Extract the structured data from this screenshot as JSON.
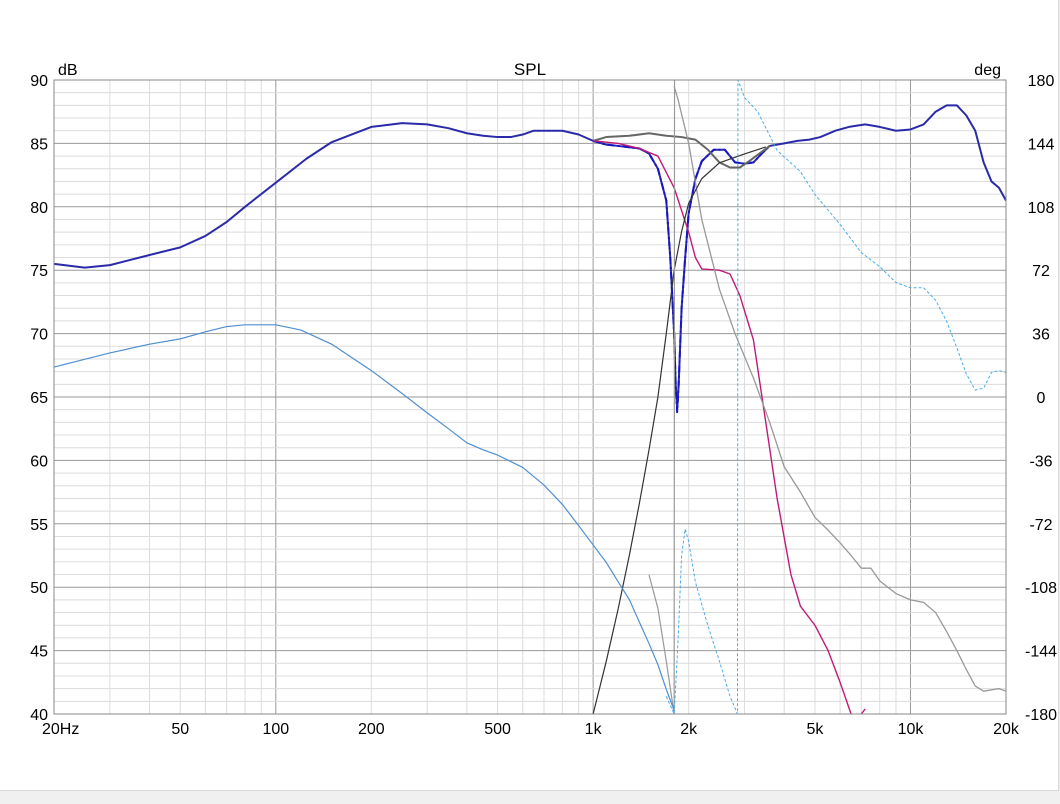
{
  "chart_data": {
    "type": "line",
    "title": "SPL",
    "ylabel_left": "dB",
    "ylabel_right": "deg",
    "x_scale": "log",
    "xlim": [
      20,
      20000
    ],
    "ylim_left": [
      40,
      90
    ],
    "ylim_right": [
      -180,
      180
    ],
    "grid": true,
    "x_ticks": [
      {
        "value": 20,
        "label": "20Hz"
      },
      {
        "value": 50,
        "label": "50"
      },
      {
        "value": 100,
        "label": "100"
      },
      {
        "value": 200,
        "label": "200"
      },
      {
        "value": 500,
        "label": "500"
      },
      {
        "value": 1000,
        "label": "1k"
      },
      {
        "value": 2000,
        "label": "2k"
      },
      {
        "value": 5000,
        "label": "5k"
      },
      {
        "value": 10000,
        "label": "10k"
      },
      {
        "value": 20000,
        "label": "20k"
      }
    ],
    "y_ticks_left": [
      90,
      85,
      80,
      75,
      70,
      65,
      60,
      55,
      50,
      45,
      40
    ],
    "y_ticks_right": [
      180,
      144,
      108,
      72,
      36,
      0,
      -36,
      -72,
      -108,
      -144,
      -180
    ],
    "series": [
      {
        "color": "#2b2aa8",
        "axis": "left",
        "width": 2,
        "points": [
          [
            20,
            75.5
          ],
          [
            25,
            75.2
          ],
          [
            30,
            75.4
          ],
          [
            40,
            76.2
          ],
          [
            50,
            76.8
          ],
          [
            60,
            77.7
          ],
          [
            70,
            78.8
          ],
          [
            80,
            80.0
          ],
          [
            100,
            81.9
          ],
          [
            125,
            83.8
          ],
          [
            150,
            85.1
          ],
          [
            200,
            86.3
          ],
          [
            250,
            86.6
          ],
          [
            300,
            86.5
          ],
          [
            350,
            86.2
          ],
          [
            400,
            85.8
          ],
          [
            450,
            85.6
          ],
          [
            500,
            85.5
          ],
          [
            550,
            85.5
          ],
          [
            600,
            85.7
          ],
          [
            650,
            86.0
          ],
          [
            700,
            86.0
          ],
          [
            750,
            86.0
          ],
          [
            800,
            86.0
          ],
          [
            900,
            85.7
          ],
          [
            1000,
            85.2
          ],
          [
            1100,
            84.9
          ],
          [
            1200,
            84.8
          ],
          [
            1300,
            84.7
          ],
          [
            1400,
            84.6
          ],
          [
            1500,
            84.2
          ],
          [
            1600,
            83.0
          ],
          [
            1700,
            80.5
          ],
          [
            1750,
            76.0
          ],
          [
            1800,
            70.0
          ],
          [
            1820,
            66.0
          ],
          [
            1840,
            64.0
          ],
          [
            1860,
            66.0
          ],
          [
            1900,
            72.0
          ],
          [
            1950,
            76.0
          ],
          [
            2000,
            79.5
          ],
          [
            2100,
            82.2
          ],
          [
            2200,
            83.6
          ],
          [
            2400,
            84.5
          ],
          [
            2600,
            84.5
          ],
          [
            2800,
            83.5
          ],
          [
            3000,
            83.4
          ],
          [
            3200,
            83.5
          ],
          [
            3400,
            84.2
          ],
          [
            3600,
            84.8
          ],
          [
            4000,
            85.0
          ],
          [
            4400,
            85.2
          ],
          [
            4800,
            85.3
          ],
          [
            5200,
            85.5
          ],
          [
            5800,
            86.0
          ],
          [
            6400,
            86.3
          ],
          [
            7200,
            86.5
          ],
          [
            8000,
            86.3
          ],
          [
            9000,
            86.0
          ],
          [
            10000,
            86.1
          ],
          [
            11000,
            86.5
          ],
          [
            12000,
            87.5
          ],
          [
            13000,
            88.0
          ],
          [
            14000,
            88.0
          ],
          [
            15000,
            87.2
          ],
          [
            16000,
            86.0
          ],
          [
            17000,
            83.5
          ],
          [
            18000,
            82.0
          ],
          [
            19000,
            81.5
          ],
          [
            20000,
            80.5
          ]
        ]
      },
      {
        "color": "#1515c8",
        "axis": "left",
        "width": 2,
        "dash": "7 3 2 3",
        "points": [
          [
            1000,
            85.2
          ],
          [
            1100,
            84.9
          ],
          [
            1200,
            84.8
          ],
          [
            1300,
            84.7
          ],
          [
            1400,
            84.6
          ],
          [
            1500,
            84.2
          ],
          [
            1600,
            83.0
          ],
          [
            1700,
            80.5
          ],
          [
            1750,
            76.0
          ],
          [
            1800,
            70.0
          ],
          [
            1820,
            66.0
          ],
          [
            1840,
            63.8
          ],
          [
            1860,
            66.0
          ],
          [
            1900,
            72.0
          ],
          [
            1950,
            76.0
          ],
          [
            2000,
            79.5
          ],
          [
            2100,
            82.2
          ],
          [
            2200,
            83.6
          ],
          [
            2400,
            84.5
          ],
          [
            2600,
            84.5
          ],
          [
            2800,
            83.5
          ],
          [
            3000,
            83.4
          ],
          [
            3200,
            83.5
          ],
          [
            3400,
            84.2
          ],
          [
            3600,
            84.8
          ]
        ]
      },
      {
        "color": "#666666",
        "axis": "left",
        "width": 2,
        "points": [
          [
            1000,
            85.2
          ],
          [
            1100,
            85.5
          ],
          [
            1300,
            85.6
          ],
          [
            1500,
            85.8
          ],
          [
            1700,
            85.6
          ],
          [
            1900,
            85.5
          ],
          [
            2100,
            85.3
          ],
          [
            2300,
            84.5
          ],
          [
            2500,
            83.5
          ],
          [
            2700,
            83.1
          ],
          [
            2900,
            83.1
          ],
          [
            3100,
            83.6
          ],
          [
            3300,
            84.1
          ],
          [
            3600,
            84.8
          ]
        ]
      },
      {
        "color": "#c01a78",
        "axis": "left",
        "width": 1.4,
        "points": [
          [
            1000,
            85.2
          ],
          [
            1200,
            85.0
          ],
          [
            1400,
            84.6
          ],
          [
            1600,
            84.0
          ],
          [
            1800,
            81.5
          ],
          [
            2000,
            78.0
          ],
          [
            2100,
            76.0
          ],
          [
            2200,
            75.1
          ],
          [
            2500,
            75.0
          ],
          [
            2700,
            74.7
          ],
          [
            2900,
            73.0
          ],
          [
            3200,
            69.5
          ],
          [
            3500,
            63.0
          ],
          [
            3800,
            57.0
          ],
          [
            4200,
            51.0
          ],
          [
            4500,
            48.5
          ],
          [
            5000,
            47.0
          ],
          [
            5500,
            45.0
          ],
          [
            6000,
            42.5
          ],
          [
            6500,
            40.0
          ]
        ]
      },
      {
        "color": "#c01a78",
        "axis": "left",
        "width": 1.4,
        "points": [
          [
            7000,
            40.0
          ],
          [
            7200,
            40.4
          ]
        ]
      },
      {
        "color": "#999999",
        "axis": "left",
        "width": 1.3,
        "points": [
          [
            1800,
            89.5
          ],
          [
            1850,
            88.5
          ],
          [
            2000,
            85.0
          ],
          [
            2200,
            79.0
          ],
          [
            2500,
            73.5
          ],
          [
            2800,
            70.0
          ],
          [
            3200,
            66.5
          ],
          [
            3600,
            63.0
          ],
          [
            4000,
            59.5
          ],
          [
            4500,
            57.5
          ],
          [
            5000,
            55.5
          ],
          [
            5500,
            54.5
          ],
          [
            6000,
            53.5
          ],
          [
            6500,
            52.5
          ],
          [
            7000,
            51.5
          ],
          [
            7500,
            51.5
          ],
          [
            8000,
            50.5
          ],
          [
            9000,
            49.5
          ],
          [
            10000,
            49.0
          ],
          [
            11000,
            48.8
          ],
          [
            12000,
            48.0
          ],
          [
            13000,
            46.5
          ],
          [
            14000,
            45.0
          ],
          [
            15000,
            43.5
          ],
          [
            16000,
            42.2
          ],
          [
            17000,
            41.8
          ],
          [
            19000,
            42.0
          ],
          [
            20000,
            41.8
          ]
        ]
      },
      {
        "color": "#333333",
        "axis": "right",
        "width": 1.2,
        "points": [
          [
            1000,
            -180
          ],
          [
            1100,
            -150
          ],
          [
            1200,
            -120
          ],
          [
            1300,
            -90
          ],
          [
            1400,
            -60
          ],
          [
            1500,
            -30
          ],
          [
            1600,
            0
          ],
          [
            1700,
            36
          ],
          [
            1800,
            72
          ],
          [
            1900,
            94
          ],
          [
            2000,
            110
          ],
          [
            2200,
            124
          ],
          [
            2500,
            133
          ],
          [
            3000,
            138
          ],
          [
            3500,
            142
          ]
        ]
      },
      {
        "color": "#999999",
        "axis": "right",
        "width": 1.2,
        "points": [
          [
            1500,
            -101
          ],
          [
            1600,
            -120
          ],
          [
            1700,
            -150
          ],
          [
            1800,
            -180
          ],
          [
            1805,
            180
          ]
        ]
      },
      {
        "color": "#4f8fd0",
        "axis": "right",
        "width": 1.2,
        "points": [
          [
            20,
            17
          ],
          [
            30,
            25
          ],
          [
            40,
            30
          ],
          [
            50,
            33
          ],
          [
            60,
            37
          ],
          [
            70,
            40
          ],
          [
            80,
            41
          ],
          [
            100,
            41
          ],
          [
            120,
            38
          ],
          [
            150,
            30
          ],
          [
            200,
            15
          ],
          [
            250,
            2
          ],
          [
            300,
            -9
          ],
          [
            350,
            -18
          ],
          [
            400,
            -26
          ],
          [
            450,
            -30
          ],
          [
            500,
            -33
          ],
          [
            600,
            -40
          ],
          [
            700,
            -50
          ],
          [
            800,
            -61
          ],
          [
            900,
            -73
          ],
          [
            1000,
            -84
          ],
          [
            1100,
            -94
          ],
          [
            1200,
            -105
          ],
          [
            1300,
            -115
          ],
          [
            1400,
            -128
          ],
          [
            1500,
            -140
          ],
          [
            1600,
            -152
          ],
          [
            1700,
            -166
          ],
          [
            1800,
            -178
          ]
        ]
      },
      {
        "color": "#4aaee8",
        "axis": "right",
        "width": 1,
        "dash": "3 2",
        "points": [
          [
            1700,
            -170
          ],
          [
            1800,
            -180
          ],
          [
            1850,
            -140
          ],
          [
            1900,
            -90
          ],
          [
            1950,
            -75
          ],
          [
            2000,
            -82
          ],
          [
            2100,
            -105
          ],
          [
            2300,
            -130
          ],
          [
            2500,
            -150
          ],
          [
            2700,
            -170
          ],
          [
            2850,
            -180
          ],
          [
            2860,
            180
          ],
          [
            3000,
            170
          ],
          [
            3300,
            162
          ],
          [
            3800,
            140
          ],
          [
            4500,
            128
          ],
          [
            5000,
            115
          ],
          [
            6000,
            98
          ],
          [
            7000,
            82
          ],
          [
            8000,
            74
          ],
          [
            9000,
            65
          ],
          [
            10000,
            62
          ],
          [
            11000,
            62
          ],
          [
            12000,
            55
          ],
          [
            13000,
            43
          ],
          [
            14000,
            28
          ],
          [
            15000,
            13
          ],
          [
            16000,
            4
          ],
          [
            17000,
            5
          ],
          [
            18000,
            14
          ],
          [
            19000,
            15
          ],
          [
            20000,
            14
          ]
        ]
      }
    ]
  },
  "colors": {
    "grid_major": "#9a9a9a",
    "grid_minor": "#dcdcdc"
  }
}
